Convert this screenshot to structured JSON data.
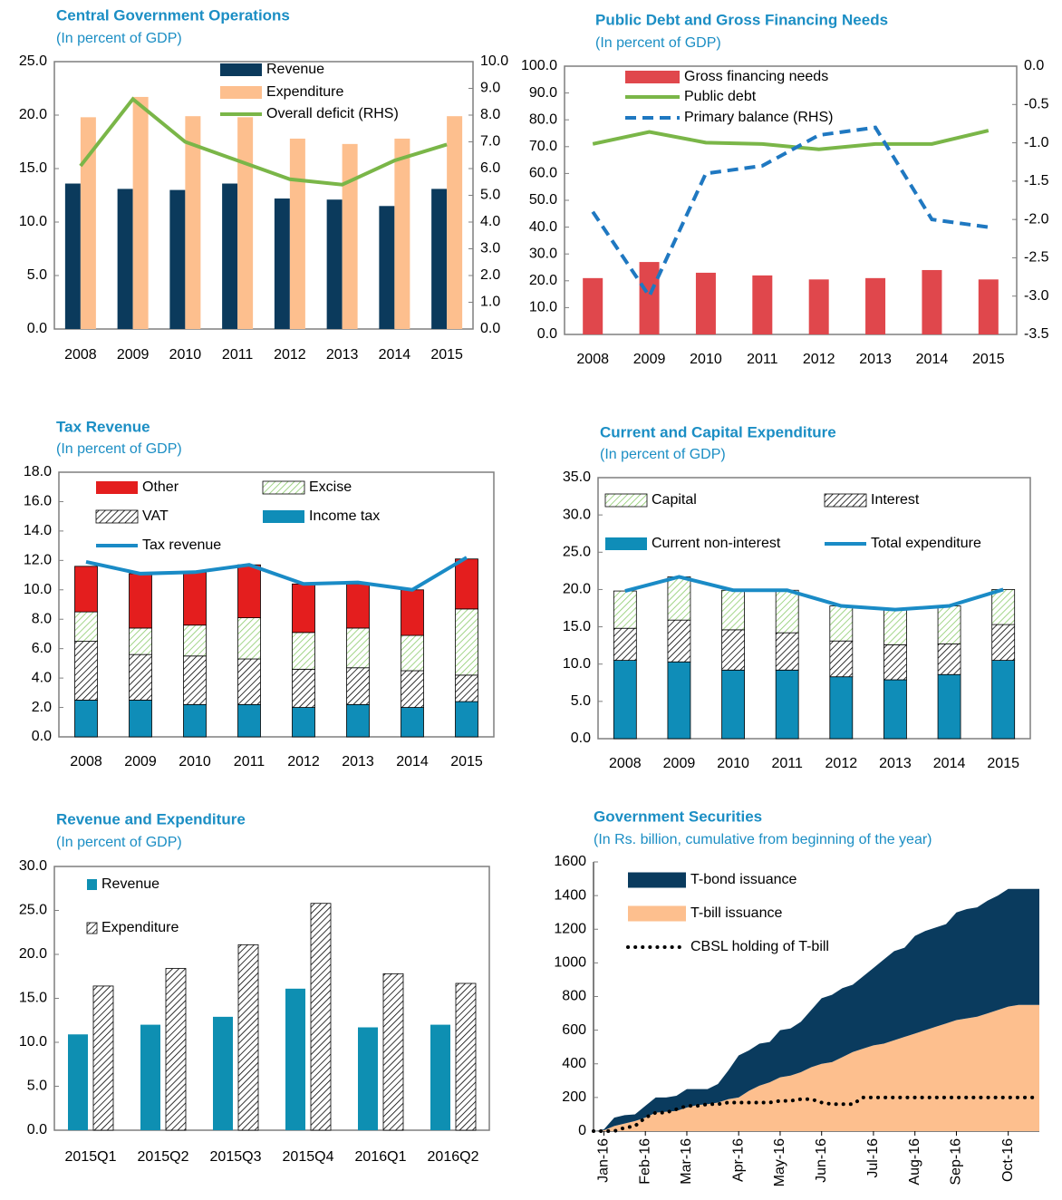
{
  "chart_data": [
    {
      "type": "bar",
      "title": "Central Government Operations",
      "subtitle": "(In percent of GDP)",
      "categories": [
        "2008",
        "2009",
        "2010",
        "2011",
        "2012",
        "2013",
        "2014",
        "2015"
      ],
      "series": [
        {
          "name": "Revenue",
          "color": "#0B3A5C",
          "values": [
            13.6,
            13.1,
            13.0,
            13.6,
            12.2,
            12.1,
            11.5,
            13.1
          ]
        },
        {
          "name": "Expenditure",
          "color": "#FDBF8E",
          "values": [
            19.8,
            21.7,
            19.9,
            19.8,
            17.8,
            17.3,
            17.8,
            19.9
          ]
        },
        {
          "name": "Overall deficit (RHS)",
          "type": "line",
          "axis": "y2",
          "color": "#7AB648",
          "values": [
            6.1,
            8.6,
            7.0,
            6.3,
            5.6,
            5.4,
            6.3,
            6.9
          ]
        }
      ],
      "ylim": [
        0,
        25
      ],
      "yticks": [
        {
          "value": 0,
          "label": "0.0"
        },
        {
          "value": 5,
          "label": "5.0"
        },
        {
          "value": 10,
          "label": "10.0"
        },
        {
          "value": 15,
          "label": "15.0"
        },
        {
          "value": 20,
          "label": "20.0"
        },
        {
          "value": 25,
          "label": "25.0"
        }
      ],
      "y2lim": [
        0,
        10
      ],
      "y2ticks": [
        {
          "value": 0,
          "label": "0.0"
        },
        {
          "value": 1,
          "label": "1.0"
        },
        {
          "value": 2,
          "label": "2.0"
        },
        {
          "value": 3,
          "label": "3.0"
        },
        {
          "value": 4,
          "label": "4.0"
        },
        {
          "value": 5,
          "label": "5.0"
        },
        {
          "value": 6,
          "label": "6.0"
        },
        {
          "value": 7,
          "label": "7.0"
        },
        {
          "value": 8,
          "label": "8.0"
        },
        {
          "value": 9,
          "label": "9.0"
        },
        {
          "value": 10,
          "label": "10.0"
        }
      ]
    },
    {
      "type": "bar",
      "title": "Public Debt and Gross Financing Needs",
      "subtitle": "(In percent of GDP)",
      "categories": [
        "2008",
        "2009",
        "2010",
        "2011",
        "2012",
        "2013",
        "2014",
        "2015"
      ],
      "series": [
        {
          "name": "Gross financing needs",
          "color": "#E0474C",
          "values": [
            21,
            27,
            23,
            22,
            20.5,
            21,
            24,
            20.5
          ]
        },
        {
          "name": "Public debt",
          "type": "line",
          "color": "#7AB648",
          "values": [
            71,
            75.5,
            71.5,
            71,
            69,
            71,
            71,
            76
          ]
        },
        {
          "name": "Primary balance (RHS)",
          "type": "line",
          "axis": "y2",
          "dash": "dashed",
          "color": "#1F78C1",
          "values": [
            -1.9,
            -3.0,
            -1.4,
            -1.3,
            -0.9,
            -0.8,
            -2.0,
            -2.1
          ]
        }
      ],
      "ylim": [
        0,
        100
      ],
      "yticks": [
        {
          "value": 0,
          "label": "0.0"
        },
        {
          "value": 10,
          "label": "10.0"
        },
        {
          "value": 20,
          "label": "20.0"
        },
        {
          "value": 30,
          "label": "30.0"
        },
        {
          "value": 40,
          "label": "40.0"
        },
        {
          "value": 50,
          "label": "50.0"
        },
        {
          "value": 60,
          "label": "60.0"
        },
        {
          "value": 70,
          "label": "70.0"
        },
        {
          "value": 80,
          "label": "80.0"
        },
        {
          "value": 90,
          "label": "90.0"
        },
        {
          "value": 100,
          "label": "100.0"
        }
      ],
      "y2lim": [
        -3.5,
        0
      ],
      "y2ticks": [
        {
          "value": 0,
          "label": "0.0"
        },
        -0.5,
        {
          "value": -1,
          "label": "-1.0"
        },
        -1.5,
        {
          "value": -2,
          "label": "-2.0"
        },
        -2.5,
        {
          "value": -3,
          "label": "-3.0"
        },
        -3.5
      ]
    },
    {
      "type": "stacked_bar",
      "title": "Tax Revenue",
      "subtitle": "(In percent of GDP)",
      "categories": [
        "2008",
        "2009",
        "2010",
        "2011",
        "2012",
        "2013",
        "2014",
        "2015"
      ],
      "series": [
        {
          "name": "Income tax",
          "color": "#0F8DB8",
          "values": [
            2.5,
            2.5,
            2.2,
            2.2,
            2.0,
            2.2,
            2.0,
            2.4
          ]
        },
        {
          "name": "VAT",
          "color": "#000000",
          "pattern": "diagonal",
          "values": [
            4.0,
            3.1,
            3.3,
            3.1,
            2.6,
            2.5,
            2.5,
            1.8
          ]
        },
        {
          "name": "Excise",
          "color": "#8CCB6C",
          "pattern": "diagonal",
          "values": [
            2.0,
            1.8,
            2.1,
            2.8,
            2.5,
            2.7,
            2.4,
            4.5
          ]
        },
        {
          "name": "Other",
          "color": "#E41E1E",
          "values": [
            3.1,
            3.7,
            3.6,
            3.6,
            3.3,
            3.0,
            3.1,
            3.4
          ]
        },
        {
          "name": "Tax revenue",
          "type": "line",
          "color": "#1A8BC6",
          "values": [
            11.9,
            11.1,
            11.2,
            11.7,
            10.4,
            10.5,
            10.0,
            12.2
          ]
        }
      ],
      "ylim": [
        0,
        18
      ],
      "yticks": [
        {
          "value": 0,
          "label": "0.0"
        },
        {
          "value": 2,
          "label": "2.0"
        },
        {
          "value": 4,
          "label": "4.0"
        },
        {
          "value": 6,
          "label": "6.0"
        },
        {
          "value": 8,
          "label": "8.0"
        },
        {
          "value": 10,
          "label": "10.0"
        },
        {
          "value": 12,
          "label": "12.0"
        },
        {
          "value": 14,
          "label": "14.0"
        },
        {
          "value": 16,
          "label": "16.0"
        },
        {
          "value": 18,
          "label": "18.0"
        }
      ]
    },
    {
      "type": "stacked_bar",
      "title": "Current and Capital Expenditure",
      "subtitle": "(In percent of GDP)",
      "categories": [
        "2008",
        "2009",
        "2010",
        "2011",
        "2012",
        "2013",
        "2014",
        "2015"
      ],
      "series": [
        {
          "name": "Current non-interest",
          "color": "#0F8DB8",
          "values": [
            10.5,
            10.3,
            9.2,
            9.2,
            8.3,
            7.9,
            8.6,
            10.5
          ]
        },
        {
          "name": "Interest",
          "color": "#000000",
          "pattern": "diagonal",
          "values": [
            4.3,
            5.6,
            5.4,
            5.0,
            4.8,
            4.7,
            4.1,
            4.8
          ]
        },
        {
          "name": "Capital",
          "color": "#8CCB6C",
          "pattern": "diagonal",
          "values": [
            5.0,
            5.8,
            5.3,
            5.7,
            4.7,
            4.7,
            5.1,
            4.7
          ]
        },
        {
          "name": "Total expenditure",
          "type": "line",
          "color": "#1A8BC6",
          "values": [
            19.8,
            21.7,
            19.9,
            19.9,
            17.8,
            17.3,
            17.8,
            20.0
          ]
        }
      ],
      "ylim": [
        0,
        35
      ],
      "yticks": [
        {
          "value": 0,
          "label": "0.0"
        },
        {
          "value": 5,
          "label": "5.0"
        },
        {
          "value": 10,
          "label": "10.0"
        },
        {
          "value": 15,
          "label": "15.0"
        },
        {
          "value": 20,
          "label": "20.0"
        },
        {
          "value": 25,
          "label": "25.0"
        },
        {
          "value": 30,
          "label": "30.0"
        },
        {
          "value": 35,
          "label": "35.0"
        }
      ]
    },
    {
      "type": "bar",
      "title": "Revenue and Expenditure",
      "subtitle": "(In percent of GDP)",
      "categories": [
        "2015Q1",
        "2015Q2",
        "2015Q3",
        "2015Q4",
        "2016Q1",
        "2016Q2"
      ],
      "series": [
        {
          "name": "Revenue",
          "color": "#0E8FB2",
          "values": [
            10.9,
            12.0,
            12.9,
            16.1,
            11.7,
            12.0
          ]
        },
        {
          "name": "Expenditure",
          "color": "#000000",
          "pattern": "diagonal",
          "values": [
            16.4,
            18.4,
            21.1,
            25.8,
            17.8,
            16.7
          ]
        }
      ],
      "ylim": [
        0,
        30
      ],
      "yticks": [
        {
          "value": 0,
          "label": "0.0"
        },
        {
          "value": 5,
          "label": "5.0"
        },
        {
          "value": 10,
          "label": "10.0"
        },
        {
          "value": 15,
          "label": "15.0"
        },
        {
          "value": 20,
          "label": "20.0"
        },
        {
          "value": 25,
          "label": "25.0"
        },
        {
          "value": 30,
          "label": "30.0"
        }
      ]
    },
    {
      "type": "area",
      "title": "Government Securities",
      "subtitle": "(In Rs. billion, cumulative from beginning of the year)",
      "categories": [
        null,
        "Jan-16",
        null,
        null,
        null,
        "Feb-16",
        null,
        null,
        null,
        "Mar-16",
        null,
        null,
        null,
        null,
        "Apr-16",
        null,
        null,
        null,
        "May-16",
        null,
        null,
        null,
        "Jun-16",
        null,
        null,
        null,
        null,
        "Jul-16",
        null,
        null,
        null,
        "Aug-16",
        null,
        null,
        null,
        "Sep-16",
        null,
        null,
        null,
        null,
        "Oct-16",
        null,
        null,
        null
      ],
      "series": [
        {
          "name": "T-bill issuance",
          "color": "#FDBF8E",
          "values": [
            0,
            5,
            30,
            45,
            60,
            80,
            110,
            115,
            120,
            140,
            155,
            160,
            170,
            190,
            200,
            240,
            270,
            290,
            320,
            330,
            350,
            380,
            400,
            410,
            440,
            470,
            490,
            510,
            520,
            540,
            560,
            580,
            600,
            620,
            640,
            660,
            670,
            680,
            700,
            720,
            740,
            750,
            750,
            750
          ]
        },
        {
          "name": "T-bond issuance",
          "color": "#0A3B5E",
          "values": [
            0,
            5,
            50,
            50,
            40,
            70,
            90,
            85,
            90,
            110,
            95,
            90,
            110,
            170,
            250,
            240,
            250,
            240,
            280,
            280,
            300,
            340,
            390,
            400,
            410,
            400,
            430,
            460,
            500,
            530,
            530,
            580,
            590,
            590,
            590,
            640,
            650,
            650,
            670,
            680,
            700,
            690,
            690,
            690
          ]
        },
        {
          "name": "CBSL holding of T-bill",
          "type": "line",
          "dash": "dotted",
          "color": "#000000",
          "values": [
            0,
            0,
            0,
            20,
            30,
            80,
            110,
            110,
            130,
            150,
            150,
            160,
            160,
            170,
            170,
            170,
            170,
            170,
            180,
            180,
            190,
            190,
            170,
            160,
            160,
            160,
            200,
            200,
            200,
            200,
            200,
            200,
            200,
            200,
            200,
            200,
            200,
            200,
            200,
            200,
            200,
            200,
            200,
            200
          ]
        }
      ],
      "ylim": [
        0,
        1600
      ],
      "yticks": [
        0,
        200,
        400,
        600,
        800,
        1000,
        1200,
        1400,
        1600
      ]
    }
  ]
}
